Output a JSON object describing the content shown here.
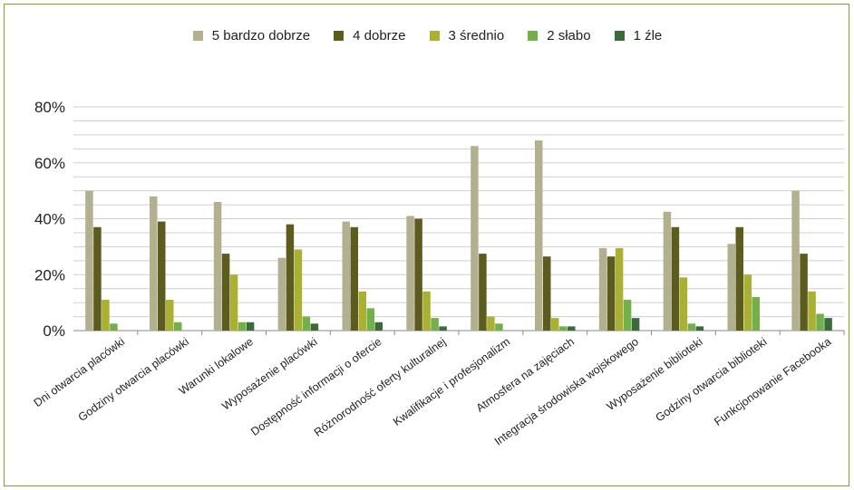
{
  "chart_data": {
    "type": "bar",
    "title": "",
    "xlabel": "",
    "ylabel": "",
    "ylim": [
      0,
      80
    ],
    "yticks": [
      "0%",
      "20%",
      "40%",
      "60%",
      "80%"
    ],
    "grid": true,
    "legend_position": "top-center",
    "categories": [
      "Dni otwarcia placówki",
      "Godziny otwarcia placówki",
      "Warunki lokalowe",
      "Wyposażenie placówki",
      "Dostępność informacji o ofercie",
      "Różnorodność oferty kulturalnej",
      "Kwalifikacje i profesjonalizm",
      "Atmosfera na zajęciach",
      "Integracja środowiska wojskowego",
      "Wyposażenie biblioteki",
      "Godziny otwarcia biblioteki",
      "Funkcjonowanie Facebooka"
    ],
    "series": [
      {
        "name": "5   bardzo dobrze",
        "color": "#b3b08f",
        "values": [
          50,
          48,
          46,
          26,
          39,
          41,
          66,
          68,
          29.5,
          42.5,
          31,
          50
        ]
      },
      {
        "name": "4   dobrze",
        "color": "#5c5c1f",
        "values": [
          37,
          39,
          27.5,
          38,
          37,
          40,
          27.5,
          26.5,
          26.5,
          37,
          37,
          27.5
        ]
      },
      {
        "name": "3   średnio",
        "color": "#a9b032",
        "values": [
          11,
          11,
          20,
          29,
          14,
          14,
          5,
          4.5,
          29.5,
          19,
          20,
          14
        ]
      },
      {
        "name": "2   słabo",
        "color": "#72b04a",
        "values": [
          2.5,
          3,
          3,
          5,
          8,
          4.5,
          2.5,
          1.5,
          11,
          2.5,
          12,
          6
        ]
      },
      {
        "name": "1   źle",
        "color": "#3c6b3b",
        "values": [
          0,
          0,
          3,
          2.5,
          3,
          1.5,
          0,
          1.5,
          4.5,
          1.5,
          0,
          4.5
        ]
      }
    ]
  }
}
